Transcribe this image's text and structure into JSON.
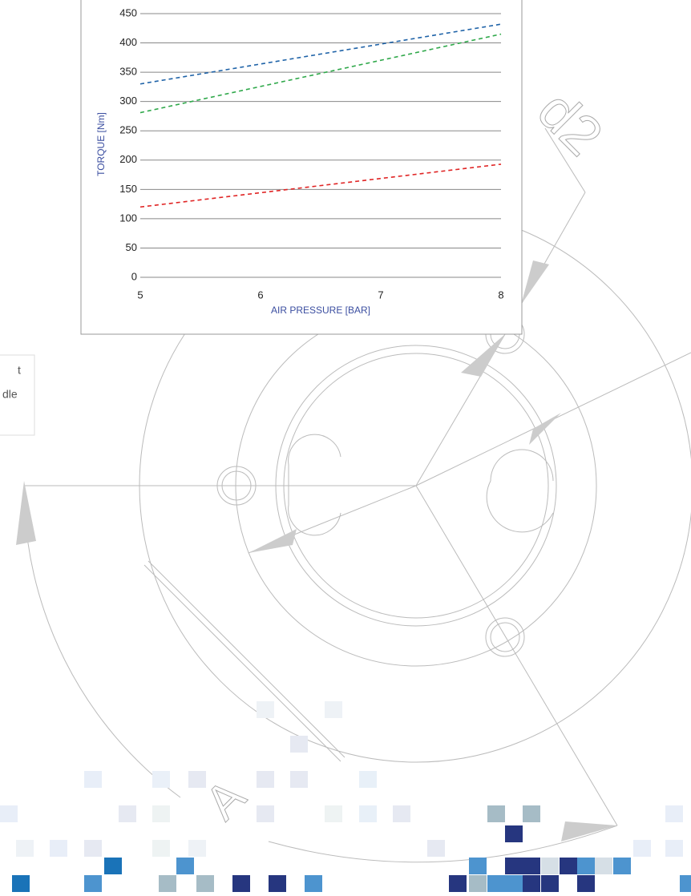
{
  "chart_data": {
    "type": "line",
    "x_label": "AIR PRESSURE [BAR]",
    "y_label": "TORQUE [Nm]",
    "x": [
      5,
      8
    ],
    "series": [
      {
        "color": "#1f63a8",
        "values": [
          330,
          432
        ]
      },
      {
        "color": "#2fa84a",
        "values": [
          281,
          415
        ]
      },
      {
        "color": "#e02424",
        "values": [
          120,
          193
        ]
      }
    ],
    "xlim": [
      5,
      8
    ],
    "xticks": [
      5,
      6,
      7,
      8
    ],
    "ylim": [
      0,
      450
    ],
    "yticks": [
      0,
      50,
      100,
      150,
      200,
      250,
      300,
      350,
      400,
      450
    ],
    "grid": true,
    "dashed": true
  },
  "side_note": [
    "t",
    "dle"
  ],
  "drawing_labels": [
    "d2",
    "A"
  ]
}
